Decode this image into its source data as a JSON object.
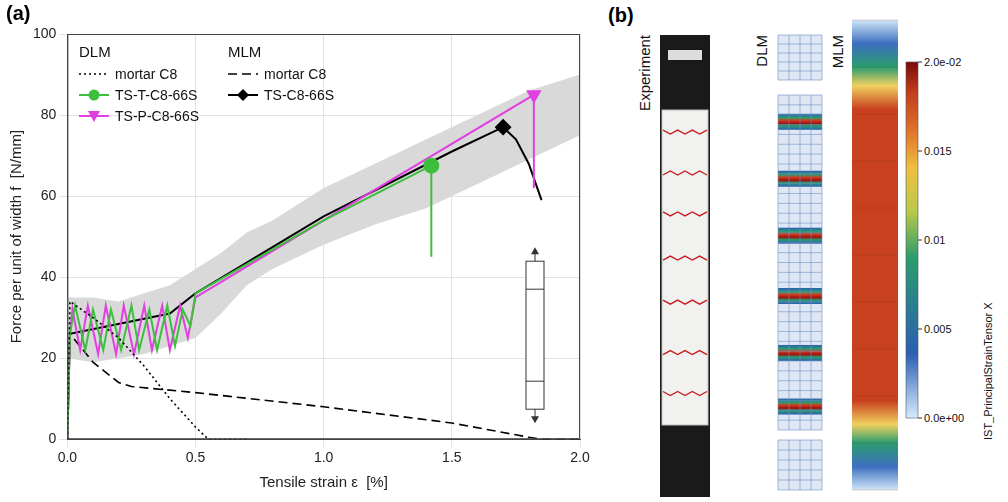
{
  "chart_data": {
    "panel_label": "(a)",
    "type": "line",
    "x_label": "Tensile strain ε  [%]",
    "y_label": "Force per unit of width f  [N/mm]",
    "xlim": [
      0,
      2
    ],
    "xticks": [
      {
        "value": 0,
        "label": "0.0"
      },
      0.5,
      {
        "value": 1,
        "label": "1.0"
      },
      1.5,
      {
        "value": 2,
        "label": "2.0"
      }
    ],
    "ylim": [
      0,
      100
    ],
    "yticks": [
      0,
      20,
      40,
      60,
      80,
      100
    ],
    "grid": true,
    "legend": "upper left",
    "band": {
      "color": "#d9d9d9",
      "x": [
        0,
        0.1,
        0.2,
        0.3,
        0.4,
        0.5,
        0.6,
        0.7,
        0.8,
        1.0,
        1.2,
        1.4,
        1.6,
        1.8,
        2.0
      ],
      "lower": [
        20,
        19,
        20,
        21,
        23,
        25,
        31,
        38,
        42,
        48,
        53,
        57,
        63,
        69,
        75
      ],
      "upper": [
        35,
        35,
        34,
        36,
        38,
        42,
        46,
        51,
        54,
        62,
        68,
        74,
        80,
        86,
        90
      ]
    },
    "series": [
      {
        "name": "mortar C8",
        "group": "DLM",
        "color": "#000000",
        "line_style": "dotted",
        "x": [
          0,
          0.01,
          0.1,
          0.2,
          0.3,
          0.4,
          0.5,
          0.55,
          0.7
        ],
        "values": [
          0,
          34,
          30,
          25,
          18,
          10,
          3,
          0,
          0
        ]
      },
      {
        "name": "TS-T-C8-66S",
        "group": "DLM",
        "color": "#3dbf3d",
        "line_style": "solid",
        "marker": "circle",
        "x": [
          0,
          0.01,
          0.03,
          0.07,
          0.1,
          0.14,
          0.17,
          0.21,
          0.25,
          0.28,
          0.32,
          0.35,
          0.39,
          0.42,
          0.45,
          0.48,
          0.5,
          1.0,
          1.42,
          1.42
        ],
        "values": [
          0,
          26,
          33,
          22,
          32,
          22,
          32,
          22,
          33,
          22,
          32,
          22,
          33,
          23,
          32,
          28,
          36,
          54,
          67.5,
          45
        ]
      },
      {
        "name": "TS-P-C8-66S",
        "group": "DLM",
        "color": "#e040e0",
        "line_style": "solid",
        "marker": "triangle-down",
        "x": [
          0,
          0.01,
          0.02,
          0.05,
          0.08,
          0.12,
          0.15,
          0.19,
          0.22,
          0.26,
          0.3,
          0.33,
          0.37,
          0.4,
          0.44,
          0.47,
          0.5,
          1.0,
          1.82,
          1.82
        ],
        "values": [
          0,
          26,
          32,
          22,
          33,
          21,
          33,
          21,
          33,
          21,
          33,
          22,
          33,
          22,
          33,
          25,
          35,
          54,
          85,
          62
        ]
      },
      {
        "name": "mortar C8",
        "group": "MLM",
        "color": "#000000",
        "line_style": "dashed",
        "x": [
          0,
          0.01,
          0.1,
          0.2,
          0.25,
          0.5,
          1.0,
          1.5,
          1.8,
          1.85,
          2.0
        ],
        "values": [
          0,
          26,
          19,
          14,
          13,
          11.5,
          8,
          4,
          0.5,
          0,
          0
        ]
      },
      {
        "name": "TS-C8-66S",
        "group": "MLM",
        "color": "#000000",
        "line_style": "solid",
        "marker": "diamond",
        "x": [
          0,
          0.01,
          0.4,
          0.5,
          1.0,
          1.5,
          1.7,
          1.75,
          1.8,
          1.85
        ],
        "values": [
          0,
          26,
          31,
          36,
          55,
          71,
          77,
          74,
          68,
          59
        ]
      }
    ]
  },
  "panel_b": {
    "panel_label": "(b)",
    "columns": [
      "Experiment",
      "DLM",
      "MLM"
    ],
    "colorbar": {
      "label": "IST_PrincipalStrainTensor X",
      "range": [
        0,
        0.02
      ],
      "ticks": [
        {
          "value": 0.02,
          "label": "2.0e-02"
        },
        0.015,
        0.01,
        0.005,
        {
          "value": 0,
          "label": "0.0e+00"
        }
      ]
    }
  }
}
